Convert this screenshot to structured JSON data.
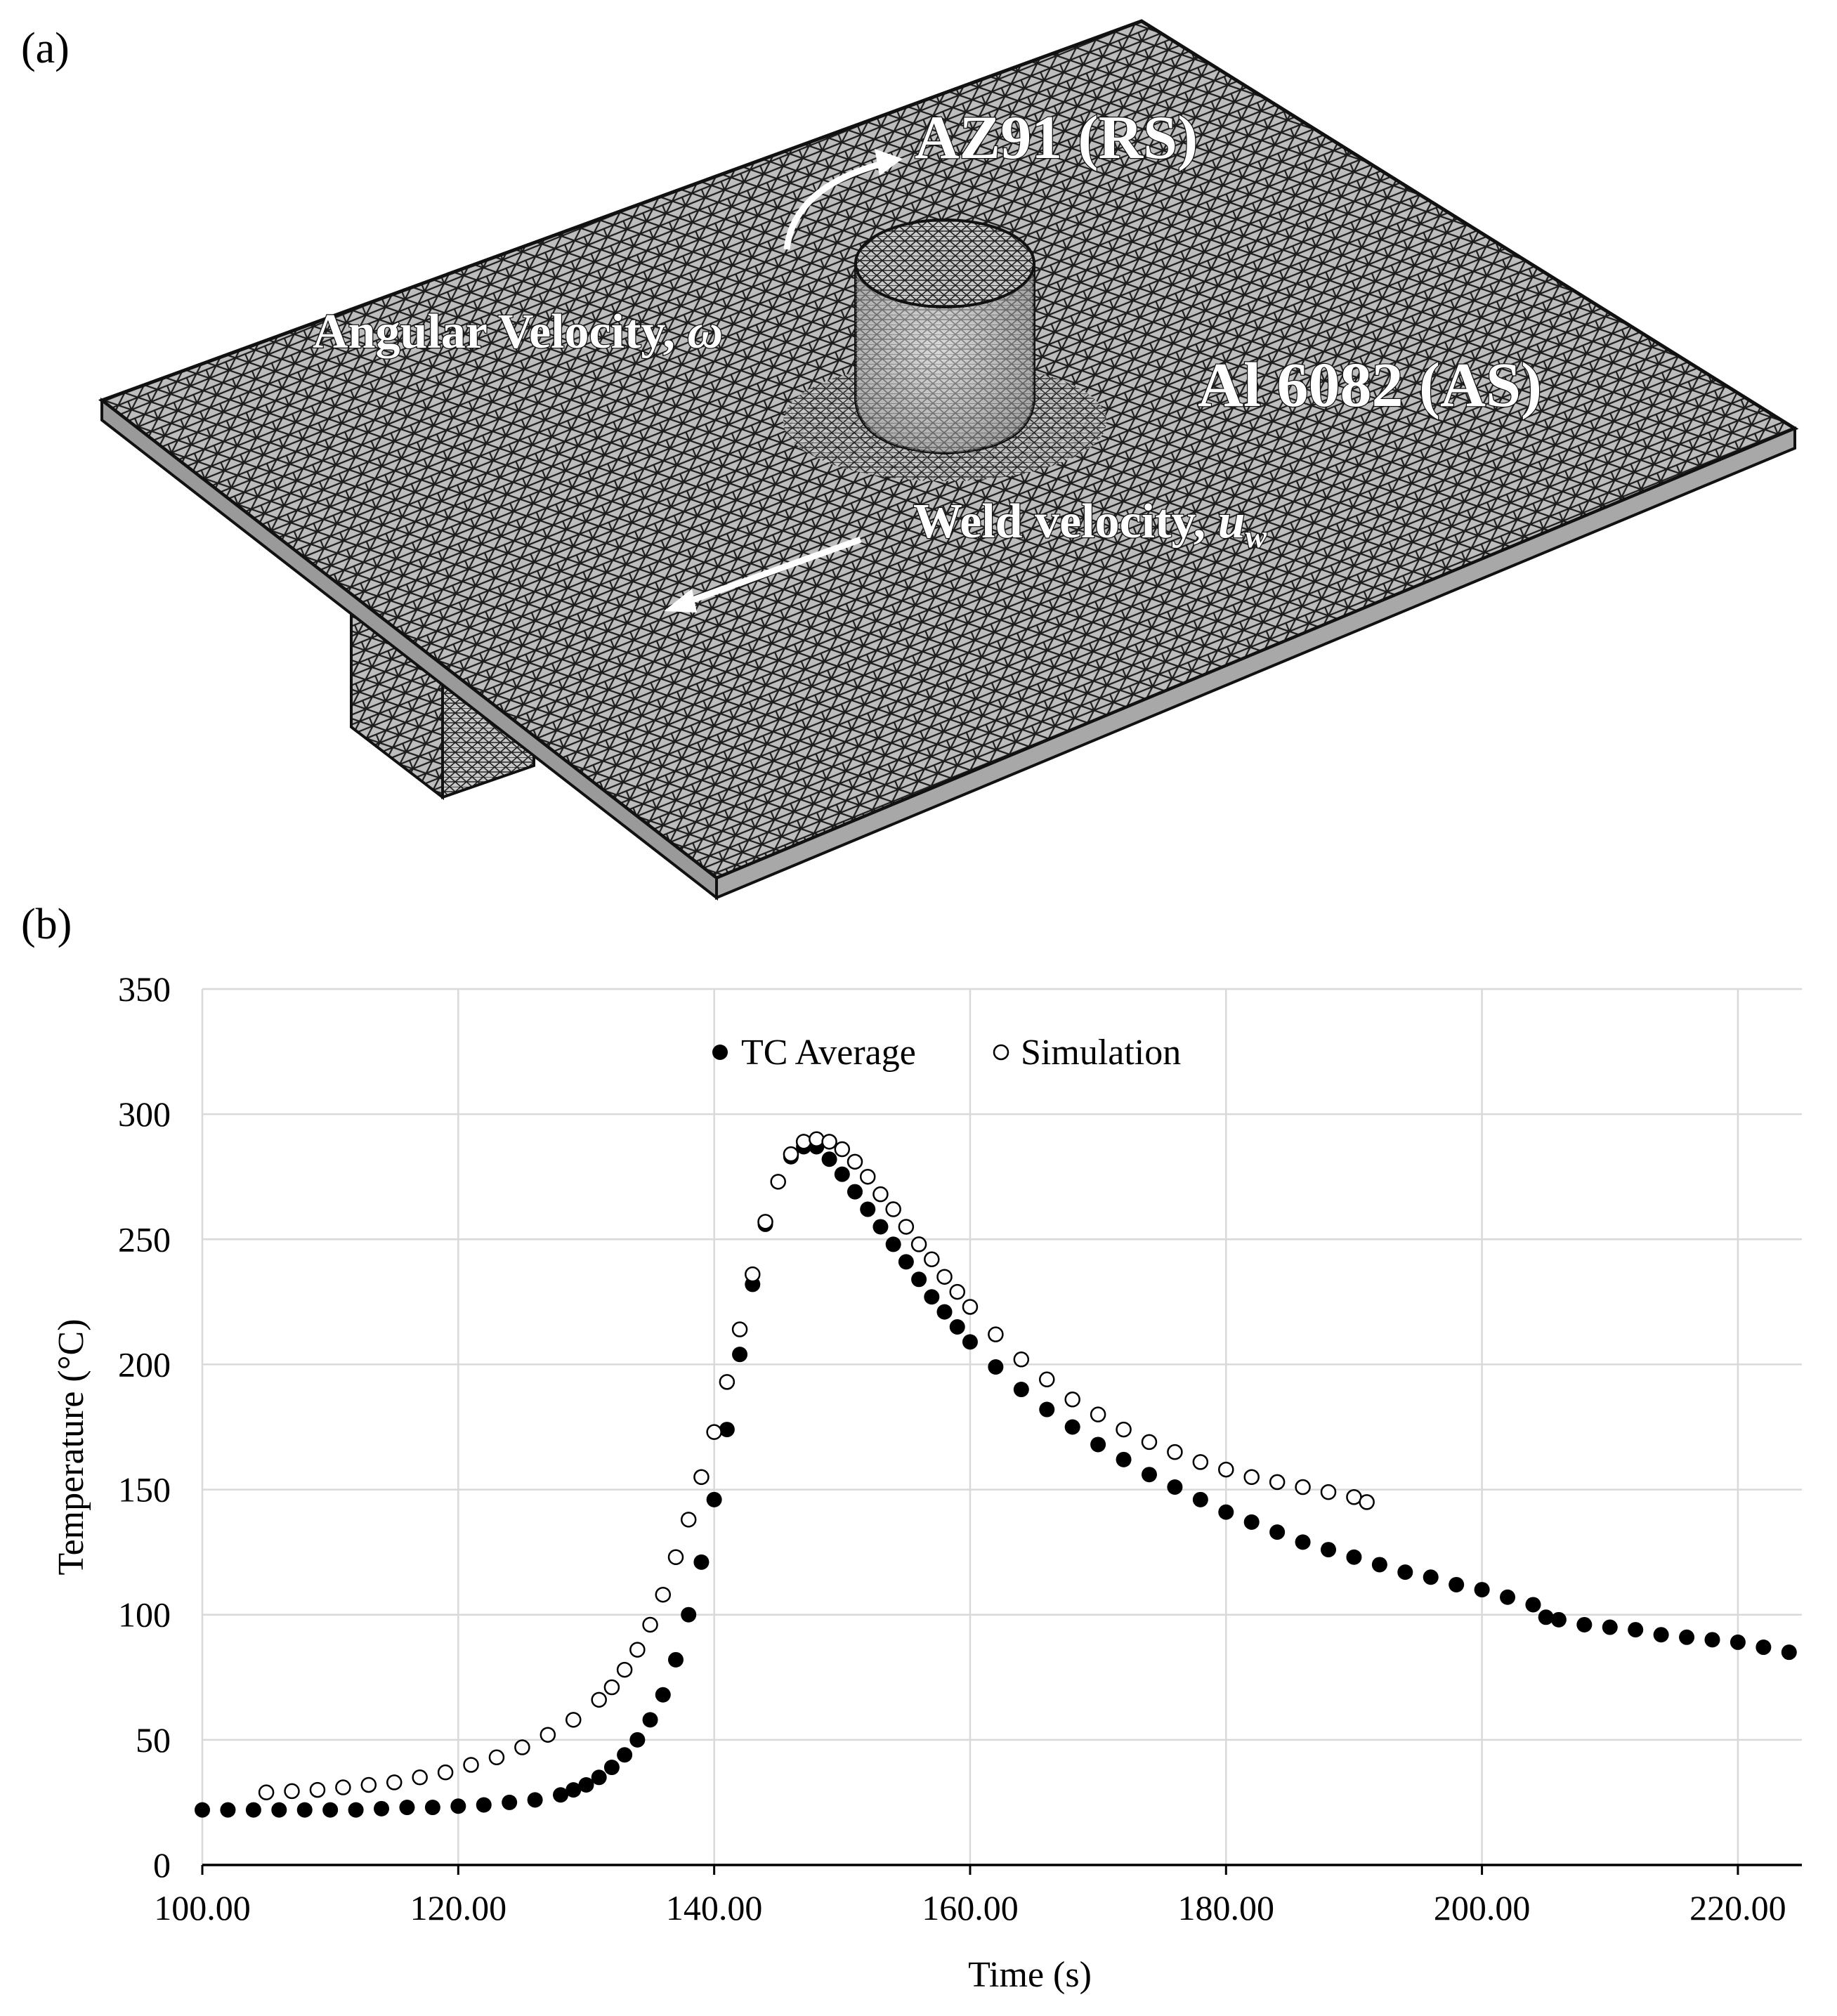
{
  "panels": {
    "a_label": "(a)",
    "b_label": "(b)"
  },
  "mesh_figure": {
    "labels": {
      "tool_top": "AZ91 (RS)",
      "angular": "Angular Velocity, ",
      "angular_symbol": "ω",
      "plate": "Al 6082 (AS)",
      "weld": "Weld velocity, ",
      "weld_symbol": "u",
      "weld_subscript": "w"
    },
    "colors": {
      "mesh_fill": "#bcbcbc",
      "mesh_line": "#1a1a1a"
    }
  },
  "chart_data": {
    "type": "scatter",
    "title": "",
    "xlabel": "Time (s)",
    "ylabel": "Temperature  (°C)",
    "xlim": [
      100,
      225
    ],
    "ylim": [
      0,
      350
    ],
    "x_ticks": [
      "100.00",
      "120.00",
      "140.00",
      "160.00",
      "180.00",
      "200.00",
      "220.00"
    ],
    "y_ticks": [
      "0",
      "50",
      "100",
      "150",
      "200",
      "250",
      "300",
      "350"
    ],
    "grid": true,
    "legend": {
      "placement": "top-center",
      "entries": [
        "TC Average",
        "Simulation"
      ]
    },
    "series": [
      {
        "name": "TC Average",
        "marker": "filled-circle",
        "points": [
          [
            100,
            22
          ],
          [
            102,
            22
          ],
          [
            104,
            22
          ],
          [
            106,
            22
          ],
          [
            108,
            22
          ],
          [
            110,
            22
          ],
          [
            112,
            22
          ],
          [
            114,
            22.5
          ],
          [
            116,
            23
          ],
          [
            118,
            23
          ],
          [
            120,
            23.5
          ],
          [
            122,
            24
          ],
          [
            124,
            25
          ],
          [
            126,
            26
          ],
          [
            128,
            28
          ],
          [
            129,
            30
          ],
          [
            130,
            32
          ],
          [
            131,
            35
          ],
          [
            132,
            39
          ],
          [
            133,
            44
          ],
          [
            134,
            50
          ],
          [
            135,
            58
          ],
          [
            136,
            68
          ],
          [
            137,
            82
          ],
          [
            138,
            100
          ],
          [
            139,
            121
          ],
          [
            140,
            146
          ],
          [
            141,
            174
          ],
          [
            142,
            204
          ],
          [
            143,
            232
          ],
          [
            144,
            256
          ],
          [
            145,
            273
          ],
          [
            146,
            283
          ],
          [
            147,
            287
          ],
          [
            148,
            287
          ],
          [
            149,
            282
          ],
          [
            150,
            276
          ],
          [
            151,
            269
          ],
          [
            152,
            262
          ],
          [
            153,
            255
          ],
          [
            154,
            248
          ],
          [
            155,
            241
          ],
          [
            156,
            234
          ],
          [
            157,
            227
          ],
          [
            158,
            221
          ],
          [
            159,
            215
          ],
          [
            160,
            209
          ],
          [
            162,
            199
          ],
          [
            164,
            190
          ],
          [
            166,
            182
          ],
          [
            168,
            175
          ],
          [
            170,
            168
          ],
          [
            172,
            162
          ],
          [
            174,
            156
          ],
          [
            176,
            151
          ],
          [
            178,
            146
          ],
          [
            180,
            141
          ],
          [
            182,
            137
          ],
          [
            184,
            133
          ],
          [
            186,
            129
          ],
          [
            188,
            126
          ],
          [
            190,
            123
          ],
          [
            192,
            120
          ],
          [
            194,
            117
          ],
          [
            196,
            115
          ],
          [
            198,
            112
          ],
          [
            200,
            110
          ],
          [
            202,
            107
          ],
          [
            204,
            104
          ],
          [
            205,
            99
          ],
          [
            206,
            98
          ],
          [
            208,
            96
          ],
          [
            210,
            95
          ],
          [
            212,
            94
          ],
          [
            214,
            92
          ],
          [
            216,
            91
          ],
          [
            218,
            90
          ],
          [
            220,
            89
          ],
          [
            222,
            87
          ],
          [
            224,
            85
          ]
        ]
      },
      {
        "name": "Simulation",
        "marker": "open-circle",
        "points": [
          [
            105,
            29
          ],
          [
            107,
            29.5
          ],
          [
            109,
            30
          ],
          [
            111,
            31
          ],
          [
            113,
            32
          ],
          [
            115,
            33
          ],
          [
            117,
            35
          ],
          [
            119,
            37
          ],
          [
            121,
            40
          ],
          [
            123,
            43
          ],
          [
            125,
            47
          ],
          [
            127,
            52
          ],
          [
            129,
            58
          ],
          [
            131,
            66
          ],
          [
            132,
            71
          ],
          [
            133,
            78
          ],
          [
            134,
            86
          ],
          [
            135,
            96
          ],
          [
            136,
            108
          ],
          [
            137,
            123
          ],
          [
            138,
            138
          ],
          [
            139,
            155
          ],
          [
            140,
            173
          ],
          [
            141,
            193
          ],
          [
            142,
            214
          ],
          [
            143,
            236
          ],
          [
            144,
            257
          ],
          [
            145,
            273
          ],
          [
            146,
            284
          ],
          [
            147,
            289
          ],
          [
            148,
            290
          ],
          [
            149,
            289
          ],
          [
            150,
            286
          ],
          [
            151,
            281
          ],
          [
            152,
            275
          ],
          [
            153,
            268
          ],
          [
            154,
            262
          ],
          [
            155,
            255
          ],
          [
            156,
            248
          ],
          [
            157,
            242
          ],
          [
            158,
            235
          ],
          [
            159,
            229
          ],
          [
            160,
            223
          ],
          [
            162,
            212
          ],
          [
            164,
            202
          ],
          [
            166,
            194
          ],
          [
            168,
            186
          ],
          [
            170,
            180
          ],
          [
            172,
            174
          ],
          [
            174,
            169
          ],
          [
            176,
            165
          ],
          [
            178,
            161
          ],
          [
            180,
            158
          ],
          [
            182,
            155
          ],
          [
            184,
            153
          ],
          [
            186,
            151
          ],
          [
            188,
            149
          ],
          [
            190,
            147
          ],
          [
            191,
            145
          ]
        ]
      }
    ]
  }
}
